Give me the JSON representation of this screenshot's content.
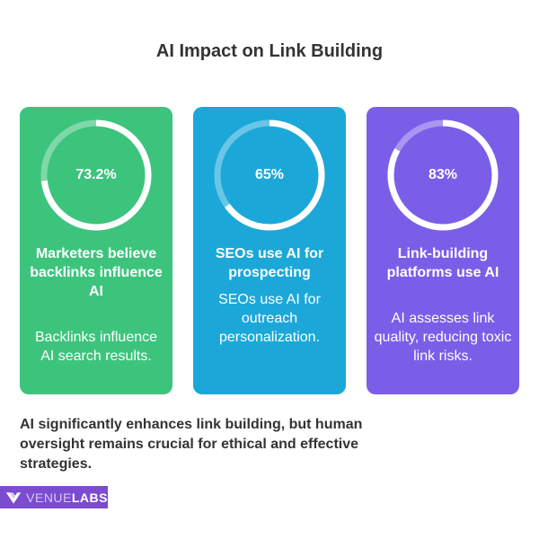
{
  "title": "AI Impact on Link Building",
  "cards": [
    {
      "percent_label": "73.2%",
      "percent": 73.2,
      "heading": "Marketers believe backlinks influence AI",
      "description": "Backlinks influence AI search results.",
      "color": "#3cc47c"
    },
    {
      "percent_label": "65%",
      "percent": 65,
      "heading": "SEOs use AI for prospecting",
      "description": "SEOs use AI for outreach personalization.",
      "color": "#1ba8d9"
    },
    {
      "percent_label": "83%",
      "percent": 83,
      "heading": "Link-building platforms use AI",
      "description": "AI assesses link quality, reducing toxic link risks.",
      "color": "#7b5ee8"
    }
  ],
  "conclusion": "AI significantly enhances link building, but human oversight remains crucial for ethical and effective strategies.",
  "logo": {
    "part1": "VENUE",
    "part2": "LABS",
    "icon": "venuelabs-v-logo-icon",
    "color": "#7b4bd0"
  }
}
